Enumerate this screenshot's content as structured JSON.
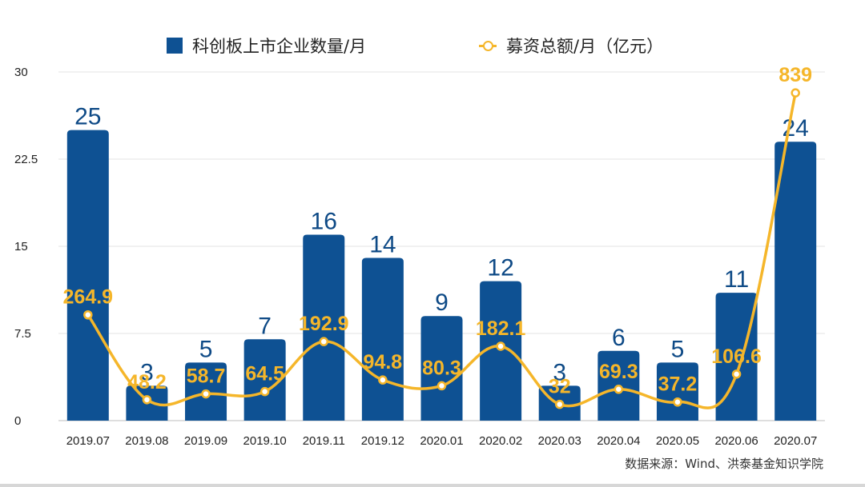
{
  "chart_data": {
    "type": "bar+line",
    "categories": [
      "2019.07",
      "2019.08",
      "2019.09",
      "2019.10",
      "2019.11",
      "2019.12",
      "2020.01",
      "2020.02",
      "2020.03",
      "2020.04",
      "2020.05",
      "2020.06",
      "2020.07"
    ],
    "y_ticks": [
      "0",
      "7.5",
      "15",
      "22.5",
      "30"
    ],
    "ylim": [
      0,
      30
    ],
    "legend_position": "top",
    "series": [
      {
        "name": "科创板上市企业数量/月",
        "type": "bar",
        "color": "#0e5193",
        "values": [
          25,
          3,
          5,
          7,
          16,
          14,
          9,
          12,
          3,
          6,
          5,
          11,
          24
        ],
        "labels": [
          "25",
          "3",
          "5",
          "7",
          "16",
          "14",
          "9",
          "12",
          "3",
          "6",
          "5",
          "11",
          "24"
        ]
      },
      {
        "name": "募资总额/月（亿元）",
        "type": "line",
        "color": "#f5b62a",
        "plot_values": [
          9.1,
          1.8,
          2.3,
          2.5,
          6.8,
          3.5,
          3.0,
          6.4,
          1.4,
          2.7,
          1.6,
          4.0,
          28.2
        ],
        "labels": [
          "264.9",
          "48.2",
          "58.7",
          "64.5",
          "192.9",
          "94.8",
          "80.3",
          "182.1",
          "32",
          "69.3",
          "37.2",
          "106.6",
          "839"
        ]
      }
    ]
  },
  "legend": {
    "bar_label": "科创板上市企业数量/月",
    "line_label": "募资总额/月（亿元）"
  },
  "source_text": "数据来源：Wind、洪泰基金知识学院"
}
